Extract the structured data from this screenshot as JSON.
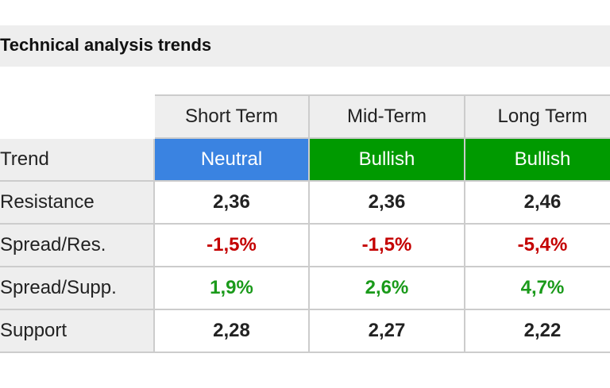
{
  "header": {
    "title": "Technical analysis trends"
  },
  "table": {
    "columns": [
      "Short Term",
      "Mid-Term",
      "Long Term"
    ],
    "rows": [
      {
        "label": "Trend",
        "cells": [
          "Neutral",
          "Bullish",
          "Bullish"
        ],
        "styles": [
          "neutral",
          "bullish",
          "bullish"
        ]
      },
      {
        "label": "Resistance",
        "cells": [
          "2,36",
          "2,36",
          "2,46"
        ],
        "styles": [
          "plain",
          "plain",
          "plain"
        ]
      },
      {
        "label": "Spread/Res.",
        "cells": [
          "-1,5%",
          "-1,5%",
          "-5,4%"
        ],
        "styles": [
          "neg",
          "neg",
          "neg"
        ]
      },
      {
        "label": "Spread/Supp.",
        "cells": [
          "1,9%",
          "2,6%",
          "4,7%"
        ],
        "styles": [
          "pos",
          "pos",
          "pos"
        ]
      },
      {
        "label": "Support",
        "cells": [
          "2,28",
          "2,27",
          "2,22"
        ],
        "styles": [
          "plain",
          "plain",
          "plain"
        ]
      }
    ]
  }
}
